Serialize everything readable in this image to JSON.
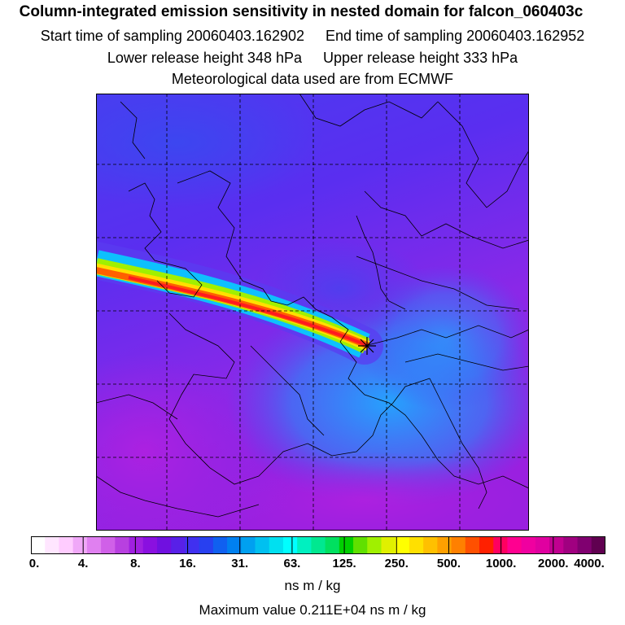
{
  "header": {
    "title": "Column-integrated emission sensitivity in nested domain for falcon_060403c",
    "start_time": "Start time of sampling 20060403.162902",
    "end_time": "End time of sampling 20060403.162952",
    "lower_release": "Lower release height  348 hPa",
    "upper_release": "Upper release height  333 hPa",
    "met_data": "Meteorological data used are from ECMWF"
  },
  "colorbar": {
    "tick_labels": [
      "0.",
      "4.",
      "8.",
      "16.",
      "31.",
      "63.",
      "125.",
      "250.",
      "500.",
      "1000.",
      "2000.",
      "4000."
    ],
    "colors": [
      "#ffffff",
      "#ffe6ff",
      "#ffccff",
      "#f0a8f8",
      "#e080f0",
      "#d060e8",
      "#b840e0",
      "#a020e0",
      "#8a10e0",
      "#7010e0",
      "#5820e8",
      "#4030f0",
      "#2840f0",
      "#1060f0",
      "#0080f0",
      "#00a0f0",
      "#00c0f0",
      "#00e0f0",
      "#00ffff",
      "#00f0c0",
      "#00e890",
      "#00e060",
      "#00d000",
      "#60e000",
      "#a0f000",
      "#e0f000",
      "#ffff00",
      "#ffe000",
      "#ffc000",
      "#ffa000",
      "#ff8000",
      "#ff5000",
      "#ff2000",
      "#ff0060",
      "#ff0090",
      "#f000a0",
      "#e000a0",
      "#c00090",
      "#a00080",
      "#800070",
      "#600050"
    ],
    "unit": "ns m / kg"
  },
  "footer": {
    "max_value": "Maximum value  0.211E+04 ns m / kg"
  }
}
